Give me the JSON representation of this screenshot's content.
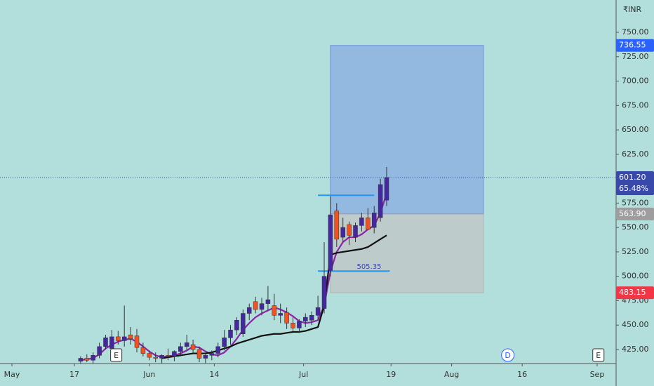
{
  "chart_data": {
    "type": "candlestick",
    "currency": "₹INR",
    "x": [
      11,
      12,
      13,
      14,
      15,
      16,
      17,
      18,
      19,
      20,
      21,
      22,
      23,
      24,
      25,
      26,
      27,
      28,
      29,
      30,
      31,
      32,
      33,
      34,
      35,
      36,
      37,
      38,
      39,
      40,
      41,
      42,
      43,
      44,
      45,
      46,
      47,
      48,
      49,
      50,
      51,
      52,
      53,
      54,
      55,
      56,
      57,
      58,
      59,
      60
    ],
    "open": [
      413,
      416,
      414,
      419,
      428,
      426,
      438,
      434,
      440,
      439,
      427,
      421,
      417,
      416,
      419,
      418,
      423,
      428,
      430,
      425,
      416,
      419,
      421,
      428,
      437,
      445,
      441,
      462,
      474,
      466,
      472,
      470,
      460,
      463,
      452,
      447,
      454,
      455,
      460,
      467,
      506,
      567,
      540,
      553,
      540,
      552,
      560,
      550,
      560,
      578
    ],
    "high": [
      418,
      420,
      422,
      432,
      440,
      445,
      444,
      470,
      448,
      446,
      432,
      424,
      422,
      420,
      426,
      424,
      432,
      440,
      435,
      428,
      420,
      424,
      432,
      445,
      450,
      458,
      466,
      472,
      479,
      478,
      490,
      482,
      472,
      468,
      458,
      456,
      462,
      464,
      480,
      535,
      582,
      575,
      560,
      556,
      555,
      565,
      570,
      572,
      600,
      612
    ],
    "low": [
      410,
      412,
      411,
      416,
      425,
      420,
      430,
      428,
      430,
      422,
      418,
      414,
      412,
      411,
      414,
      413,
      418,
      424,
      420,
      412,
      411,
      414,
      417,
      424,
      430,
      440,
      438,
      455,
      462,
      460,
      465,
      455,
      452,
      446,
      444,
      442,
      448,
      450,
      455,
      462,
      500,
      530,
      535,
      532,
      535,
      546,
      548,
      544,
      556,
      572
    ],
    "close": [
      416,
      414,
      419,
      428,
      437,
      438,
      434,
      438,
      436,
      427,
      421,
      417,
      416,
      419,
      418,
      423,
      428,
      432,
      425,
      416,
      419,
      421,
      428,
      437,
      445,
      455,
      462,
      468,
      466,
      472,
      476,
      460,
      462,
      452,
      447,
      454,
      458,
      460,
      468,
      500,
      563,
      538,
      550,
      542,
      552,
      560,
      548,
      565,
      594,
      601.2
    ],
    "up_color": "#4527a0",
    "down_color": "#f4511e",
    "series": [
      {
        "color": "#8e24aa",
        "values": [
          414,
          415,
          416,
          420,
          426,
          430,
          433,
          435,
          436,
          433,
          428,
          423,
          419,
          417,
          418,
          419,
          421,
          424,
          428,
          427,
          423,
          420,
          419,
          422,
          428,
          436,
          445,
          452,
          458,
          462,
          465,
          468,
          466,
          463,
          459,
          454,
          452,
          453,
          455,
          470,
          505,
          525,
          535,
          540,
          540,
          543,
          548,
          552,
          565,
          585
        ]
      },
      {
        "color": "#111111",
        "values": [
          null,
          null,
          null,
          null,
          null,
          null,
          null,
          null,
          null,
          null,
          null,
          null,
          null,
          416,
          417,
          418,
          419,
          420,
          421,
          421,
          421,
          422,
          424,
          426,
          428,
          431,
          433,
          435,
          437,
          439,
          440,
          441,
          441,
          442,
          443,
          443,
          444,
          446,
          448,
          470,
          522,
          524,
          525,
          526,
          527,
          528,
          530,
          534,
          538,
          542
        ]
      }
    ],
    "xlim": [
      -1.91,
      96.74
    ],
    "ylim": [
      410.6,
      783.1
    ],
    "xticks": [
      {
        "value": 0,
        "label": "May"
      },
      {
        "value": 10,
        "label": "17"
      },
      {
        "value": 22,
        "label": "Jun"
      },
      {
        "value": 32.4,
        "label": "14"
      },
      {
        "value": 46.7,
        "label": "Jul"
      },
      {
        "value": 60.7,
        "label": "19"
      },
      {
        "value": 70.4,
        "label": "Aug"
      },
      {
        "value": 81.7,
        "label": "16"
      },
      {
        "value": 93.7,
        "label": "Sep"
      }
    ],
    "yticks": [
      {
        "value": 750,
        "label": "750.00"
      },
      {
        "value": 725,
        "label": "725.00"
      },
      {
        "value": 700,
        "label": "700.00"
      },
      {
        "value": 675,
        "label": "675.00"
      },
      {
        "value": 650,
        "label": "650.00"
      },
      {
        "value": 625,
        "label": "625.00"
      },
      {
        "value": 575,
        "label": "575.00"
      },
      {
        "value": 550,
        "label": "550.00"
      },
      {
        "value": 525,
        "label": "525.00"
      },
      {
        "value": 500,
        "label": "500.00"
      },
      {
        "value": 475,
        "label": "475.00"
      },
      {
        "value": 450,
        "label": "450.00"
      },
      {
        "value": 425,
        "label": "425.00"
      }
    ],
    "position": {
      "from": 51,
      "to": 75.5,
      "target": 736.55,
      "entry": 563.9,
      "stop": 483.15
    },
    "price_labels": [
      {
        "value": 736.55,
        "label": "736.55",
        "color": "#2962ff"
      },
      {
        "value": 601.2,
        "label": "601.20",
        "sublabel": "65.48%",
        "color": "#3949ab"
      },
      {
        "value": 563.9,
        "label": "563.90",
        "color": "#9e9e9e"
      },
      {
        "value": 483.15,
        "label": "483.15",
        "color": "#f23645"
      }
    ],
    "levels": [
      {
        "value": 583,
        "from": 49,
        "to": 58
      },
      {
        "value": 505.35,
        "label": "505.35",
        "from": 49,
        "to": 60.5
      }
    ],
    "events": [
      {
        "x": 16.7,
        "label": "E"
      },
      {
        "x": 79.4,
        "label": "D"
      },
      {
        "x": 93.9,
        "label": "E"
      }
    ]
  }
}
